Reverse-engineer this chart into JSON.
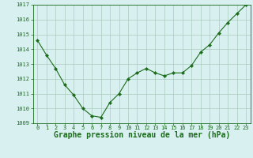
{
  "x": [
    0,
    1,
    2,
    3,
    4,
    5,
    6,
    7,
    8,
    9,
    10,
    11,
    12,
    13,
    14,
    15,
    16,
    17,
    18,
    19,
    20,
    21,
    22,
    23
  ],
  "y": [
    1014.6,
    1013.6,
    1012.7,
    1011.6,
    1010.9,
    1010.0,
    1009.5,
    1009.4,
    1010.4,
    1011.0,
    1012.0,
    1012.4,
    1012.7,
    1012.4,
    1012.2,
    1012.4,
    1012.4,
    1012.9,
    1013.8,
    1014.3,
    1015.1,
    1015.8,
    1016.4,
    1017.0
  ],
  "ylim": [
    1009,
    1017
  ],
  "yticks": [
    1009,
    1010,
    1011,
    1012,
    1013,
    1014,
    1015,
    1016,
    1017
  ],
  "xticks": [
    0,
    1,
    2,
    3,
    4,
    5,
    6,
    7,
    8,
    9,
    10,
    11,
    12,
    13,
    14,
    15,
    16,
    17,
    18,
    19,
    20,
    21,
    22,
    23
  ],
  "xlabel": "Graphe pression niveau de la mer (hPa)",
  "line_color": "#1a6b1a",
  "marker": "D",
  "marker_size": 2.2,
  "bg_color": "#d9f0f0",
  "grid_color": "#aaccbb",
  "tick_label_color": "#1a6b1a",
  "xlabel_color": "#1a6b1a",
  "tick_fontsize": 5.0,
  "xlabel_fontsize": 7.0,
  "linewidth": 0.8
}
